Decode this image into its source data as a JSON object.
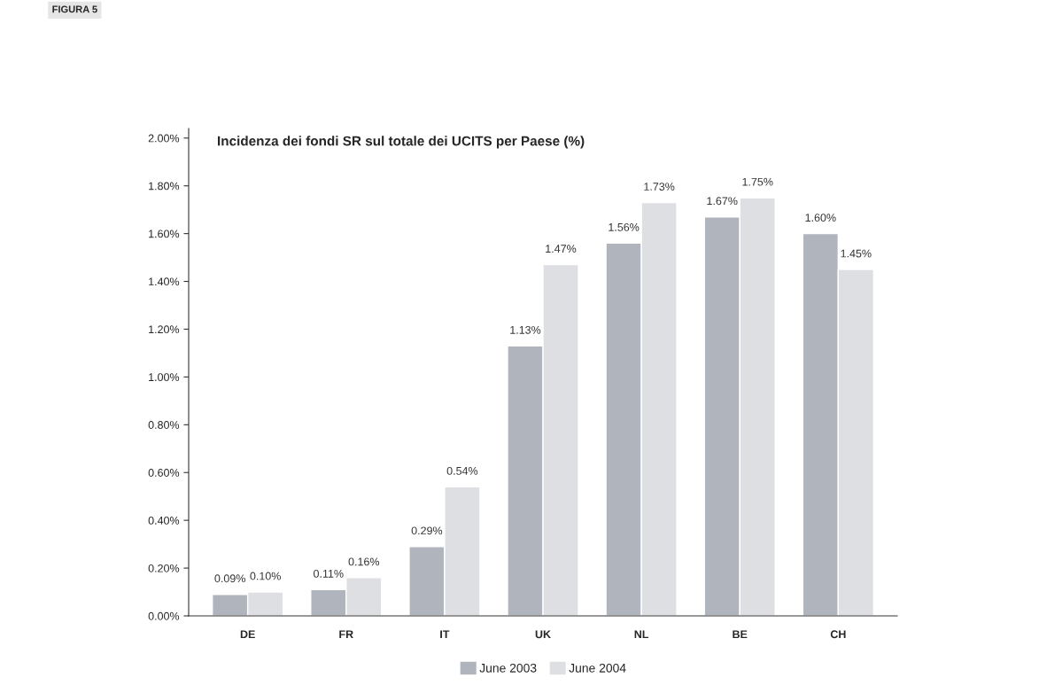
{
  "chart_data": {
    "type": "bar",
    "title": "Incidenza dei fondi SR sul totale dei UCITS per Paese (%)",
    "annotations": [
      "FIGURA 5"
    ],
    "categories": [
      "DE",
      "FR",
      "IT",
      "UK",
      "NL",
      "BE",
      "CH"
    ],
    "series": [
      {
        "name": "June 2003",
        "color": "#b0b5bd",
        "values": [
          0.09,
          0.11,
          0.29,
          1.13,
          1.56,
          1.67,
          1.6
        ],
        "value_labels": [
          "0.09%",
          "0.11%",
          "0.29%",
          "1.13%",
          "1.56%",
          "1.67%",
          "1.60%"
        ]
      },
      {
        "name": "June 2004",
        "color": "#dedfe3",
        "values": [
          0.1,
          0.16,
          0.54,
          1.47,
          1.73,
          1.75,
          1.45
        ],
        "value_labels": [
          "0.10%",
          "0.16%",
          "0.54%",
          "1.47%",
          "1.73%",
          "1.75%",
          "1.45%"
        ]
      }
    ],
    "ylim": [
      0,
      2.04
    ],
    "yticks": [
      {
        "value": 0,
        "label": "0.00%"
      },
      {
        "value": 0.2,
        "label": "0.20%"
      },
      {
        "value": 0.4,
        "label": "0.40%"
      },
      {
        "value": 0.6,
        "label": "0.60%"
      },
      {
        "value": 0.8,
        "label": "0.80%"
      },
      {
        "value": 1.0,
        "label": "1.00%"
      },
      {
        "value": 1.2,
        "label": "1.20%"
      },
      {
        "value": 1.4,
        "label": "1.40%"
      },
      {
        "value": 1.6,
        "label": "1.60%"
      },
      {
        "value": 1.8,
        "label": "1.80%"
      },
      {
        "value": 2.0,
        "label": "2.00%"
      }
    ],
    "grid": false,
    "legend": "bottom"
  }
}
